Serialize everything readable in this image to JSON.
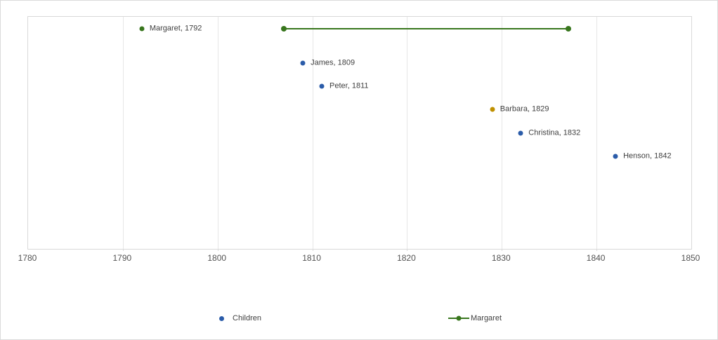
{
  "chart_data": {
    "type": "scatter",
    "title": "",
    "x_axis": {
      "min": 1780,
      "max": 1850,
      "tick_interval": 10,
      "ticks": [
        1780,
        1790,
        1800,
        1810,
        1820,
        1830,
        1840,
        1850
      ]
    },
    "y_axis": {
      "min": 0,
      "max": 10,
      "labels_visible": false
    },
    "grid": "vertical-only",
    "points": [
      {
        "series": "Margaret",
        "name": "Margaret",
        "label": "Margaret, 1792",
        "x": 1792,
        "y": 9.5,
        "color": "#38761d"
      },
      {
        "series": "Children",
        "name": "James",
        "label": "James, 1809",
        "x": 1809,
        "y": 8,
        "color": "#2b5ca9"
      },
      {
        "series": "Children",
        "name": "Peter",
        "label": "Peter, 1811",
        "x": 1811,
        "y": 7,
        "color": "#2b5ca9"
      },
      {
        "series": "Children",
        "name": "Barbara",
        "label": "Barbara, 1829",
        "x": 1829,
        "y": 6,
        "color": "#bf9000"
      },
      {
        "series": "Children",
        "name": "Christina",
        "label": "Christina, 1832",
        "x": 1832,
        "y": 5,
        "color": "#2b5ca9"
      },
      {
        "series": "Children",
        "name": "Henson",
        "label": "Henson, 1842",
        "x": 1842,
        "y": 4,
        "color": "#2b5ca9"
      }
    ],
    "lines": [
      {
        "series": "Margaret",
        "x_start": 1807,
        "x_end": 1837,
        "y": 9.5,
        "color": "#38761d",
        "end_markers": true
      }
    ],
    "legend": {
      "position": "bottom",
      "items": [
        {
          "label": "Children",
          "marker": "dot",
          "color": "#2b5ca9"
        },
        {
          "label": "Margaret",
          "marker": "line-dot",
          "color": "#38761d"
        }
      ]
    },
    "colors": {
      "gridline": "#e6e6e6",
      "plot_border": "#d9d9d9",
      "canvas_border": "#dadada",
      "point_label_text": "#3f3f3f",
      "axis_label_text": "#525252"
    }
  }
}
